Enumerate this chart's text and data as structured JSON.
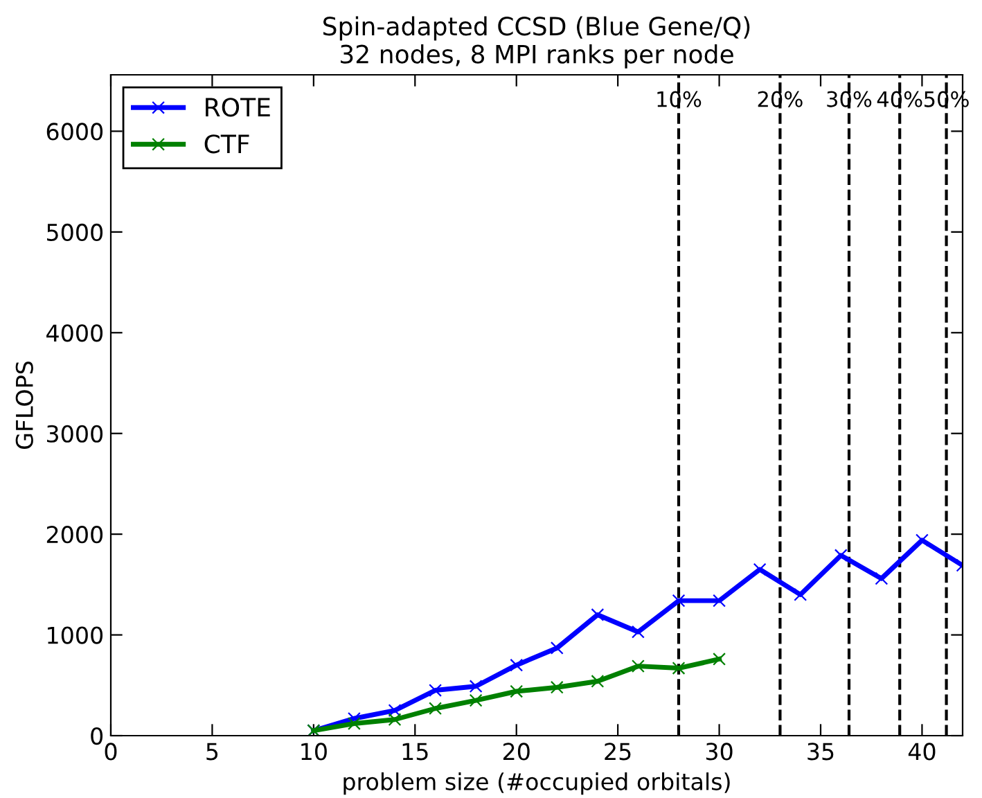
{
  "chart_data": {
    "type": "line",
    "title": "Spin-adapted CCSD (Blue Gene/Q)\n32 nodes, 8 MPI ranks per node",
    "xlabel": "problem size (#occupied orbitals)",
    "ylabel": "GFLOPS",
    "xlim": [
      0,
      42
    ],
    "xticks": [
      0,
      5,
      10,
      15,
      20,
      25,
      30,
      35,
      40
    ],
    "ylim": [
      0,
      6560
    ],
    "yticks": [
      0,
      1000,
      2000,
      3000,
      4000,
      5000,
      6000
    ],
    "grid": false,
    "legend": "top left",
    "marker": "cross",
    "line_style": "solid",
    "series": [
      {
        "name": "ROTE",
        "color": "#0000ff",
        "x": [
          10,
          12,
          14,
          16,
          18,
          20,
          22,
          24,
          26,
          28,
          30,
          32,
          34,
          36,
          38,
          40,
          42
        ],
        "values": [
          50,
          170,
          250,
          450,
          490,
          700,
          870,
          1200,
          1030,
          1340,
          1340,
          1650,
          1400,
          1790,
          1560,
          1940,
          1690
        ]
      },
      {
        "name": "CTF",
        "color": "#008000",
        "x": [
          10,
          12,
          14,
          16,
          18,
          20,
          22,
          24,
          26,
          28,
          30
        ],
        "values": [
          50,
          120,
          160,
          270,
          350,
          440,
          480,
          540,
          690,
          670,
          760
        ]
      }
    ],
    "ref_lines": [
      {
        "axis": "x",
        "value": 28,
        "color": "#000000",
        "line_style": "dashed"
      },
      {
        "axis": "x",
        "value": 33,
        "color": "#000000",
        "line_style": "dashed"
      },
      {
        "axis": "x",
        "value": 36.4,
        "color": "#000000",
        "line_style": "dashed"
      },
      {
        "axis": "x",
        "value": 38.9,
        "color": "#000000",
        "line_style": "dashed"
      },
      {
        "axis": "x",
        "value": 41.2,
        "color": "#000000",
        "line_style": "dashed"
      }
    ],
    "annotations": [
      {
        "text": "10%",
        "x": 28,
        "y": 6300
      },
      {
        "text": "20%",
        "x": 33,
        "y": 6300
      },
      {
        "text": "30%",
        "x": 36.4,
        "y": 6300
      },
      {
        "text": "40%",
        "x": 38.9,
        "y": 6300
      },
      {
        "text": "50%",
        "x": 41.2,
        "y": 6300
      }
    ]
  }
}
